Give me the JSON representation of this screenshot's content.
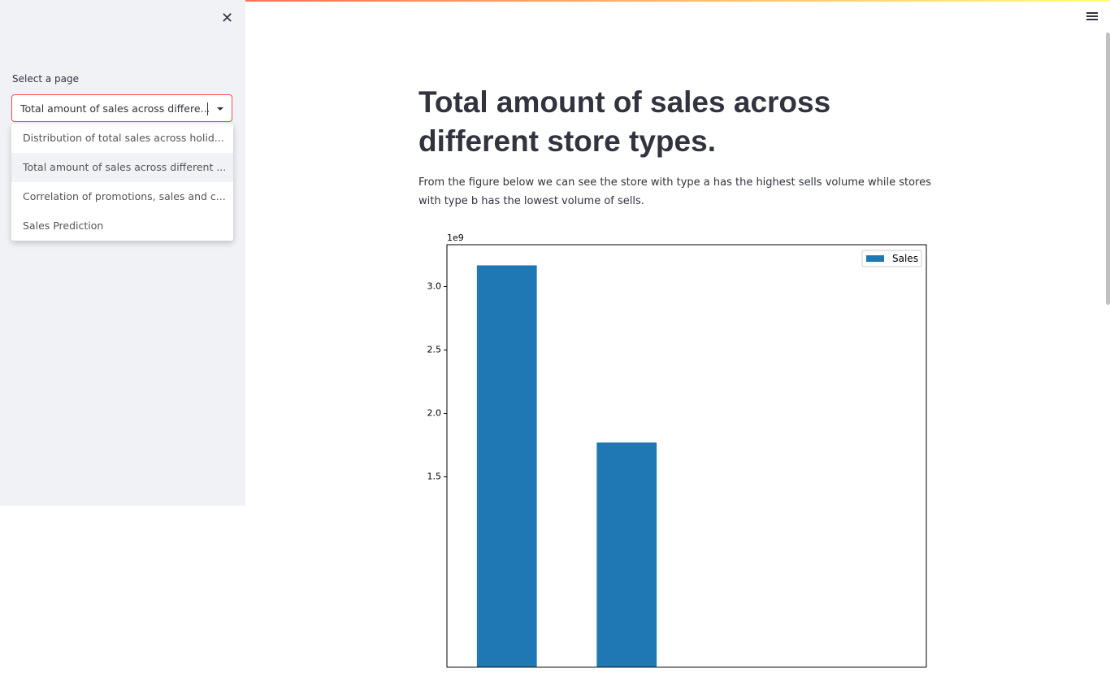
{
  "sidebar": {
    "label": "Select a page",
    "selected": "Total amount of sales across differe…",
    "options": [
      "Distribution of total sales across holid...",
      "Total amount of sales across different ...",
      "Correlation of promotions, sales and c...",
      "Sales Prediction"
    ]
  },
  "main": {
    "title": "Total amount of sales across different store types.",
    "paragraph": "From the figure below we can see the store with type a has the highest sells volume while stores with type b has the lowest volume of sells."
  },
  "chart_data": {
    "type": "bar",
    "offset_label": "1e9",
    "categories": [
      null,
      null,
      null,
      null
    ],
    "series": [
      {
        "name": "Sales",
        "color": "#1f77b4",
        "values": [
          3.167,
          1.77,
          null,
          null
        ]
      }
    ],
    "ylim": [
      0,
      3.33
    ],
    "yticks": [
      1.5,
      {
        "value": 2,
        "label": "2.0"
      },
      2.5,
      {
        "value": 3,
        "label": "3.0"
      }
    ],
    "legend": "upper right"
  }
}
